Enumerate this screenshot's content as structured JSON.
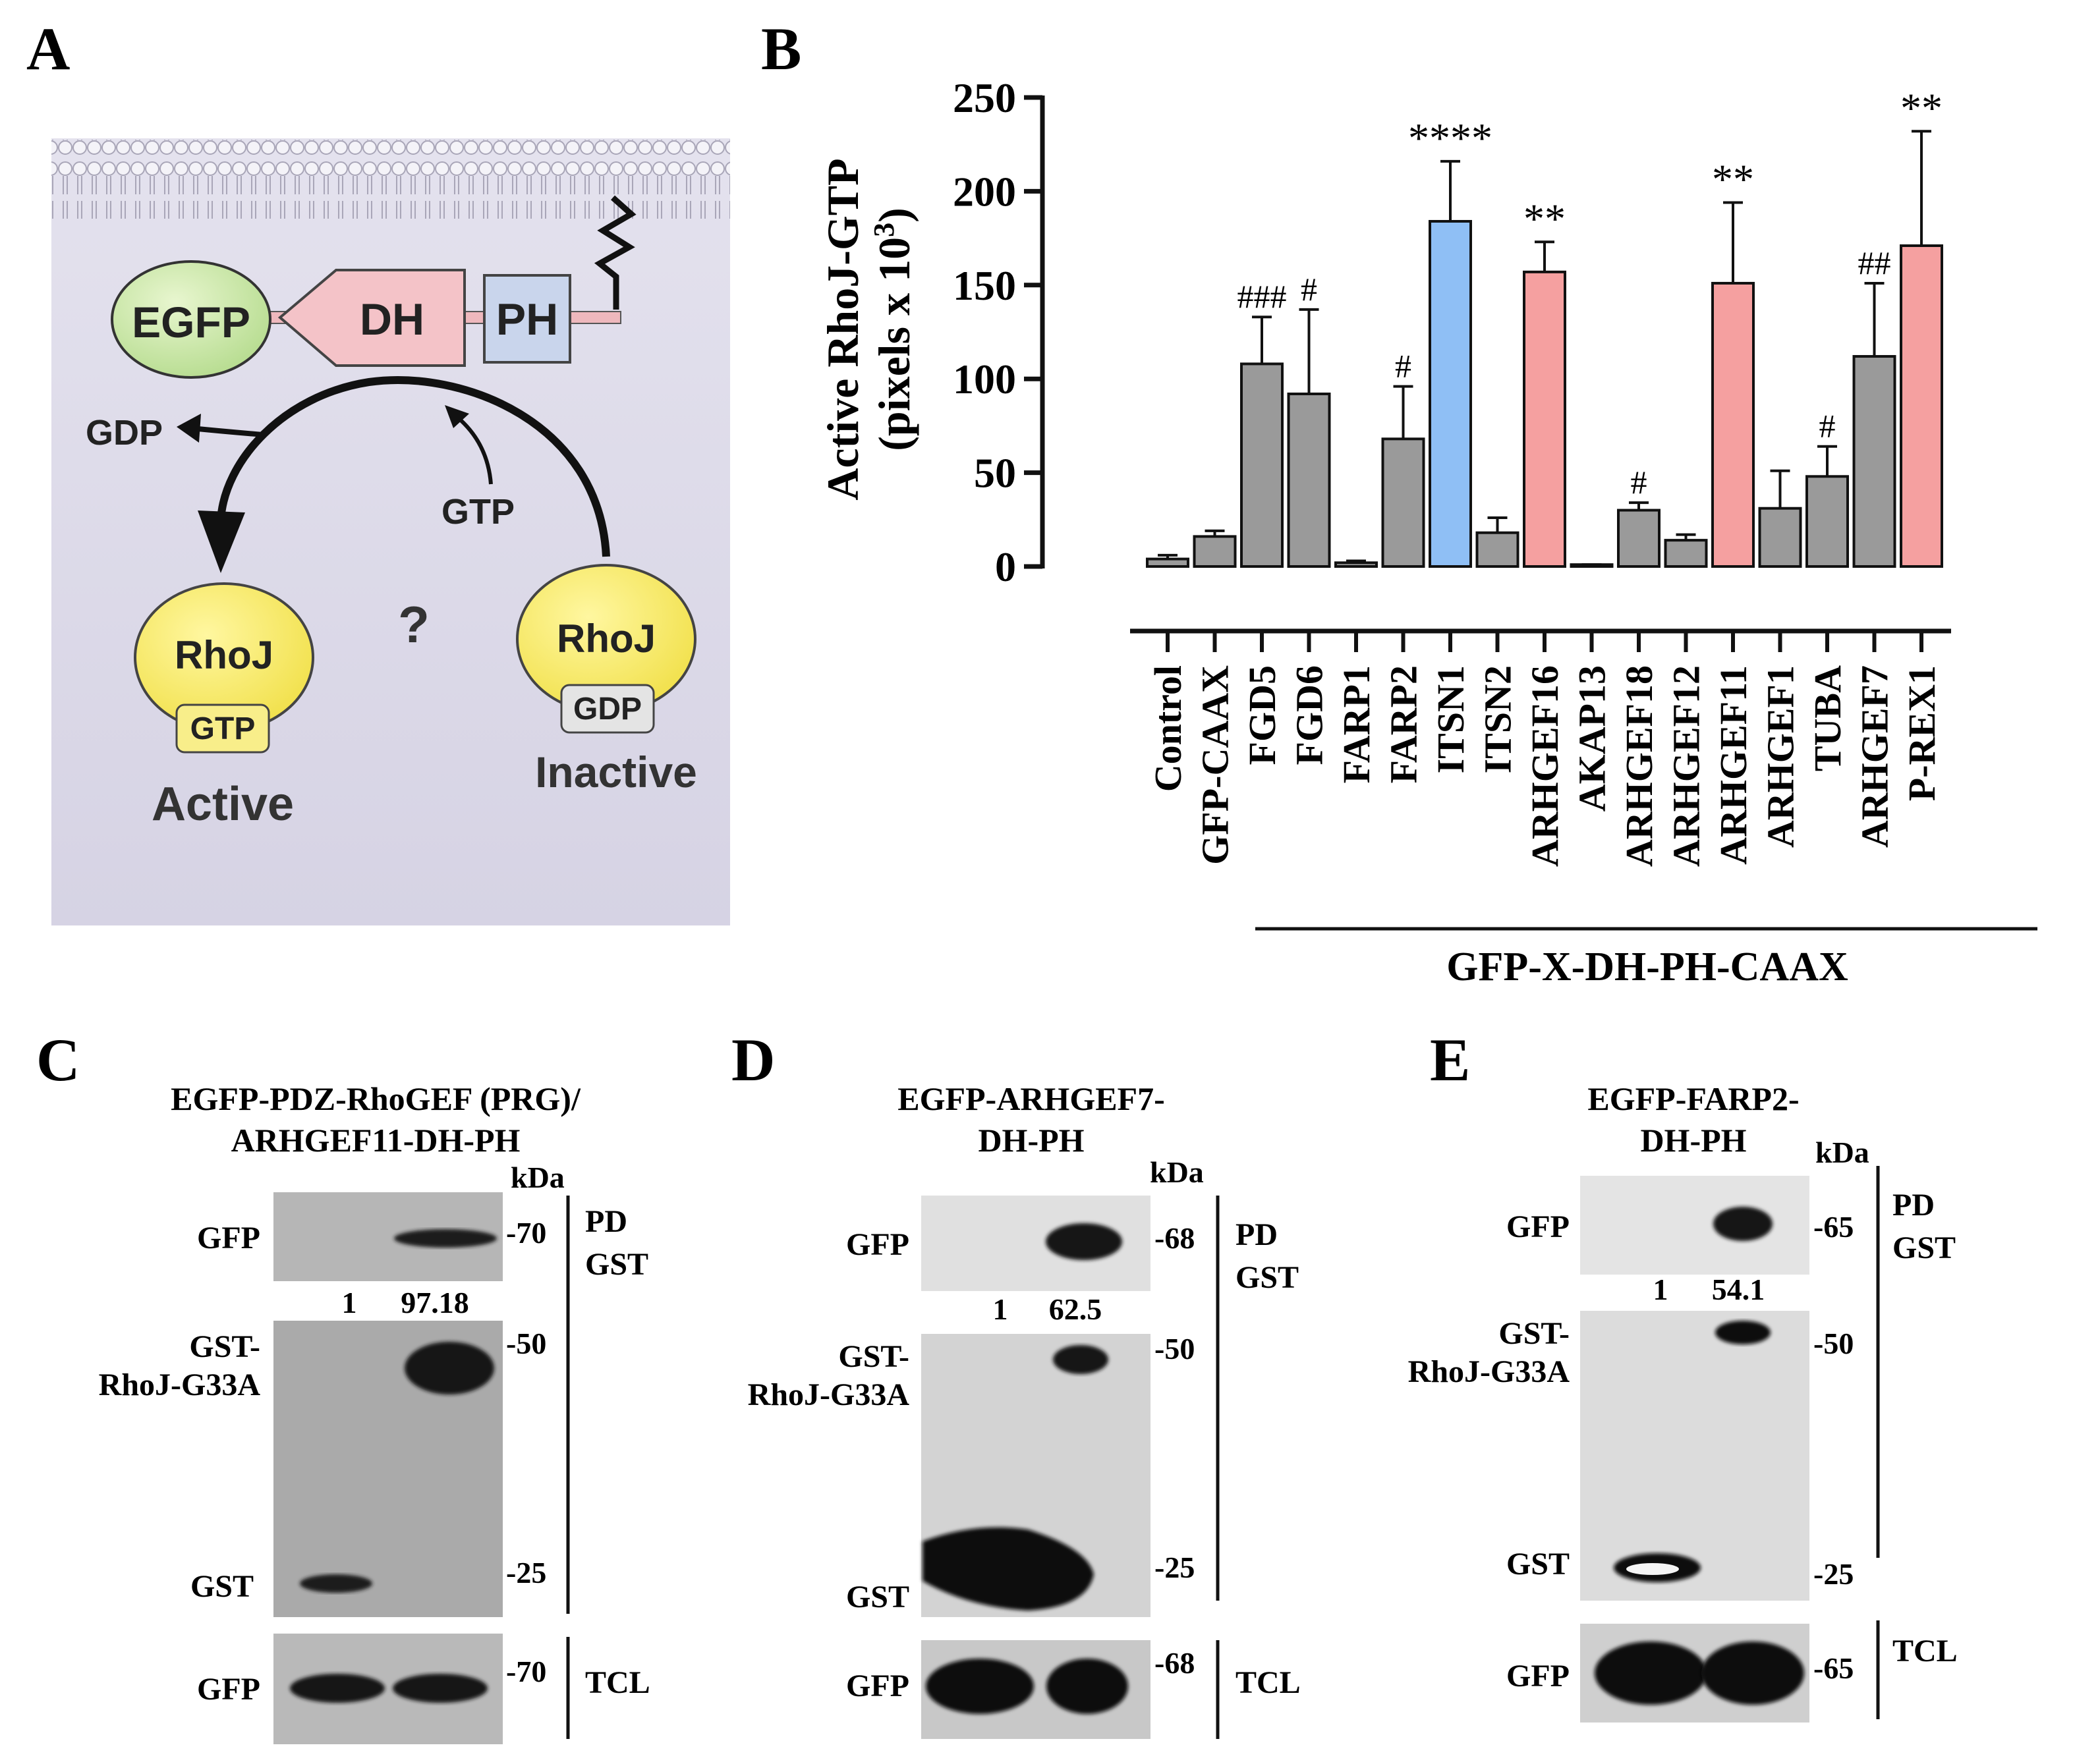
{
  "panels": {
    "a": {
      "letter": "A"
    },
    "b": {
      "letter": "B"
    },
    "c": {
      "letter": "C"
    },
    "d": {
      "letter": "D"
    },
    "e": {
      "letter": "E"
    }
  },
  "schematic": {
    "egfp": "EGFP",
    "dh": "DH",
    "ph": "PH",
    "gdp_out": "GDP",
    "gtp_in": "GTP",
    "rhoj_active": "RhoJ",
    "rhoj_inactive": "RhoJ",
    "gtp_bound": "GTP",
    "gdp_bound": "GDP",
    "question": "?",
    "active": "Active",
    "inactive": "Inactive"
  },
  "chart_data": {
    "type": "bar",
    "ylabel_line1": "Active RhoJ-GTP",
    "ylabel_line2_prefix": "(pixels x 10",
    "ylabel_line2_sup": "3",
    "ylabel_line2_suffix": ")",
    "ylim": [
      0,
      250
    ],
    "yticks": [
      "0",
      "50",
      "100",
      "150",
      "200",
      "250"
    ],
    "group_label": "GFP-X-DH-PH-CAAX",
    "bars": [
      {
        "category": "Control",
        "value": 4,
        "error": 2,
        "color": "#9a9a9a",
        "mark": ""
      },
      {
        "category": "GFP-CAAX",
        "value": 16,
        "error": 3,
        "color": "#9a9a9a",
        "mark": ""
      },
      {
        "category": "FGD5",
        "value": 108,
        "error": 25,
        "color": "#9a9a9a",
        "mark": "###"
      },
      {
        "category": "FGD6",
        "value": 92,
        "error": 45,
        "color": "#9a9a9a",
        "mark": "#"
      },
      {
        "category": "FARP1",
        "value": 2,
        "error": 1,
        "color": "#9a9a9a",
        "mark": ""
      },
      {
        "category": "FARP2",
        "value": 68,
        "error": 28,
        "color": "#9a9a9a",
        "mark": "#"
      },
      {
        "category": "ITSN1",
        "value": 184,
        "error": 32,
        "color": "#8fbff5",
        "mark": "****"
      },
      {
        "category": "ITSN2",
        "value": 18,
        "error": 8,
        "color": "#9a9a9a",
        "mark": ""
      },
      {
        "category": "ARHGEF16",
        "value": 157,
        "error": 16,
        "color": "#f5a0a0",
        "mark": "**"
      },
      {
        "category": "AKAP13",
        "value": 1,
        "error": 0,
        "color": "#9a9a9a",
        "mark": ""
      },
      {
        "category": "ARHGEF18",
        "value": 30,
        "error": 4,
        "color": "#9a9a9a",
        "mark": "#"
      },
      {
        "category": "ARHGEF12",
        "value": 14,
        "error": 3,
        "color": "#9a9a9a",
        "mark": ""
      },
      {
        "category": "ARHGEF11",
        "value": 151,
        "error": 43,
        "color": "#f5a0a0",
        "mark": "**"
      },
      {
        "category": "ARHGEF1",
        "value": 31,
        "error": 20,
        "color": "#9a9a9a",
        "mark": ""
      },
      {
        "category": "TUBA",
        "value": 48,
        "error": 16,
        "color": "#9a9a9a",
        "mark": "#"
      },
      {
        "category": "ARHGEF7",
        "value": 112,
        "error": 39,
        "color": "#9a9a9a",
        "mark": "##"
      },
      {
        "category": "P-REX1",
        "value": 171,
        "error": 61,
        "color": "#f5a0a0",
        "mark": "**"
      }
    ]
  },
  "blots": {
    "c": {
      "title1": "EGFP-PDZ-RhoGEF (PRG)/",
      "title2": "ARHGEF11-DH-PH",
      "kda": "kDa",
      "gfp": "GFP",
      "gst_rhoj1": "GST-",
      "gst_rhoj2": "RhoJ-G33A",
      "gst": "GST",
      "gfp_tcl": "GFP",
      "q1": "1",
      "q2": "97.18",
      "m70": "-70",
      "m50": "-50",
      "m25": "-25",
      "m70b": "-70",
      "pd": "PD",
      "gst_pd": "GST",
      "tcl": "TCL"
    },
    "d": {
      "title1": "EGFP-ARHGEF7-",
      "title2": "DH-PH",
      "kda": "kDa",
      "gfp": "GFP",
      "gst_rhoj1": "GST-",
      "gst_rhoj2": "RhoJ-G33A",
      "gst": "GST",
      "gfp_tcl": "GFP",
      "q1": "1",
      "q2": "62.5",
      "m68": "-68",
      "m50": "-50",
      "m25": "-25",
      "m68b": "-68",
      "pd": "PD",
      "gst_pd": "GST",
      "tcl": "TCL"
    },
    "e": {
      "title1": "EGFP-FARP2-",
      "title2": "DH-PH",
      "kda": "kDa",
      "gfp": "GFP",
      "gst_rhoj1": "GST-",
      "gst_rhoj2": "RhoJ-G33A",
      "gst": "GST",
      "gfp_tcl": "GFP",
      "q1": "1",
      "q2": "54.1",
      "m65": "-65",
      "m50": "-50",
      "m25": "-25",
      "m65b": "-65",
      "pd": "PD",
      "gst_pd": "GST",
      "tcl": "TCL"
    }
  }
}
